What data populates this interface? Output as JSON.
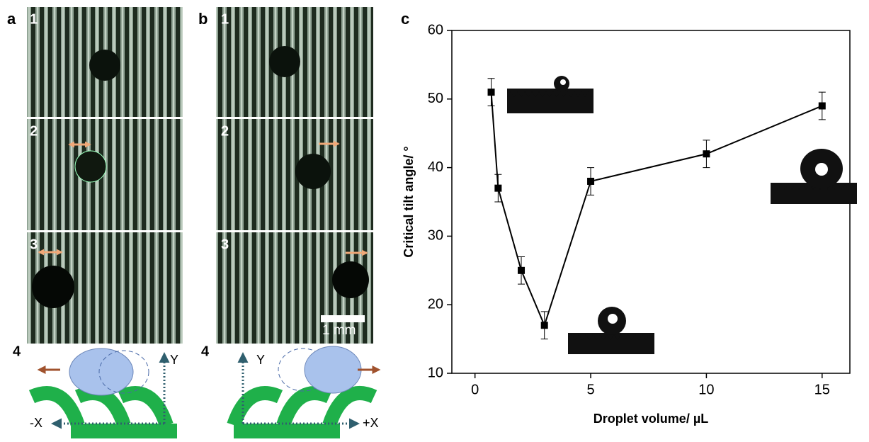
{
  "panels": {
    "a": {
      "label": "a",
      "steps": [
        "1",
        "2",
        "3",
        "4"
      ],
      "y_axis": "Y",
      "x_axis": "-X"
    },
    "b": {
      "label": "b",
      "steps": [
        "1",
        "2",
        "3",
        "4"
      ],
      "scale_bar": "1 mm",
      "y_axis": "Y",
      "x_axis": "+X"
    }
  },
  "chart_data": {
    "type": "line",
    "panel_label": "c",
    "x_label": "Droplet volume/ µL",
    "y_label": "Critical tilt angle/ °",
    "x": [
      0.7,
      1,
      2,
      3,
      5,
      10,
      15
    ],
    "values": [
      51,
      37,
      25,
      17,
      38,
      42,
      49
    ],
    "errors": [
      2,
      2,
      2,
      2,
      2,
      2,
      2
    ],
    "color": "#000000",
    "xlim": [
      -1,
      16.2
    ],
    "xticks": [
      0,
      5,
      10,
      15
    ],
    "ylim": [
      10,
      60
    ],
    "yticks": [
      10,
      20,
      30,
      40,
      50,
      60
    ]
  }
}
